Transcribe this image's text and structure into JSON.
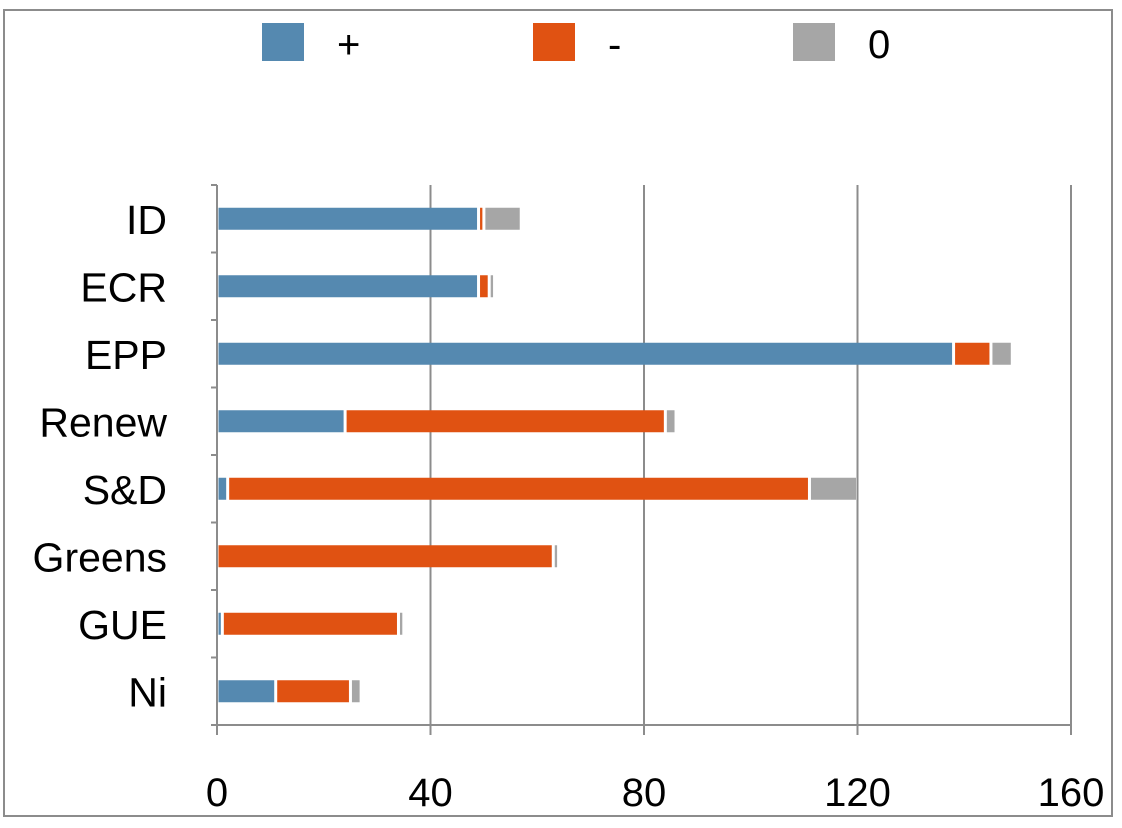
{
  "chart_data": {
    "type": "bar",
    "orientation": "horizontal",
    "stacked": true,
    "title": "",
    "xlabel": "",
    "ylabel": "",
    "categories": [
      "ID",
      "ECR",
      "EPP",
      "Renew",
      "S&D",
      "Greens",
      "GUE",
      "Ni"
    ],
    "series": [
      {
        "name": "+",
        "color": "#5589b0",
        "values": [
          49,
          49,
          138,
          24,
          2,
          0,
          1,
          11
        ]
      },
      {
        "name": "-",
        "color": "#e05212",
        "values": [
          1,
          2,
          7,
          60,
          109,
          63,
          33,
          14
        ]
      },
      {
        "name": "0",
        "color": "#a6a6a6",
        "values": [
          7,
          1,
          4,
          2,
          9,
          1,
          1,
          2
        ]
      }
    ],
    "xlim": [
      0,
      160
    ],
    "xticks": [
      0,
      40,
      80,
      120,
      160
    ],
    "xtick_labels": [
      "0",
      "40",
      "80",
      "120",
      "160"
    ],
    "grid": "vertical",
    "legend_position": "top"
  }
}
